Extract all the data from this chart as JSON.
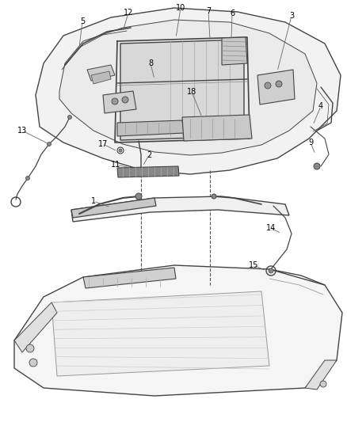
{
  "bg_color": "#ffffff",
  "line_color": "#444444",
  "text_color": "#000000",
  "fig_width": 4.39,
  "fig_height": 5.33,
  "dpi": 100,
  "labels": [
    [
      "5",
      105,
      28
    ],
    [
      "12",
      162,
      18
    ],
    [
      "10",
      228,
      12
    ],
    [
      "7",
      265,
      16
    ],
    [
      "6",
      295,
      18
    ],
    [
      "3",
      368,
      22
    ],
    [
      "8",
      197,
      80
    ],
    [
      "18",
      242,
      118
    ],
    [
      "4",
      400,
      135
    ],
    [
      "13",
      30,
      168
    ],
    [
      "17",
      133,
      185
    ],
    [
      "2",
      185,
      195
    ],
    [
      "11",
      148,
      208
    ],
    [
      "9",
      392,
      182
    ],
    [
      "1",
      120,
      258
    ],
    [
      "14",
      340,
      290
    ],
    [
      "15",
      322,
      336
    ]
  ]
}
